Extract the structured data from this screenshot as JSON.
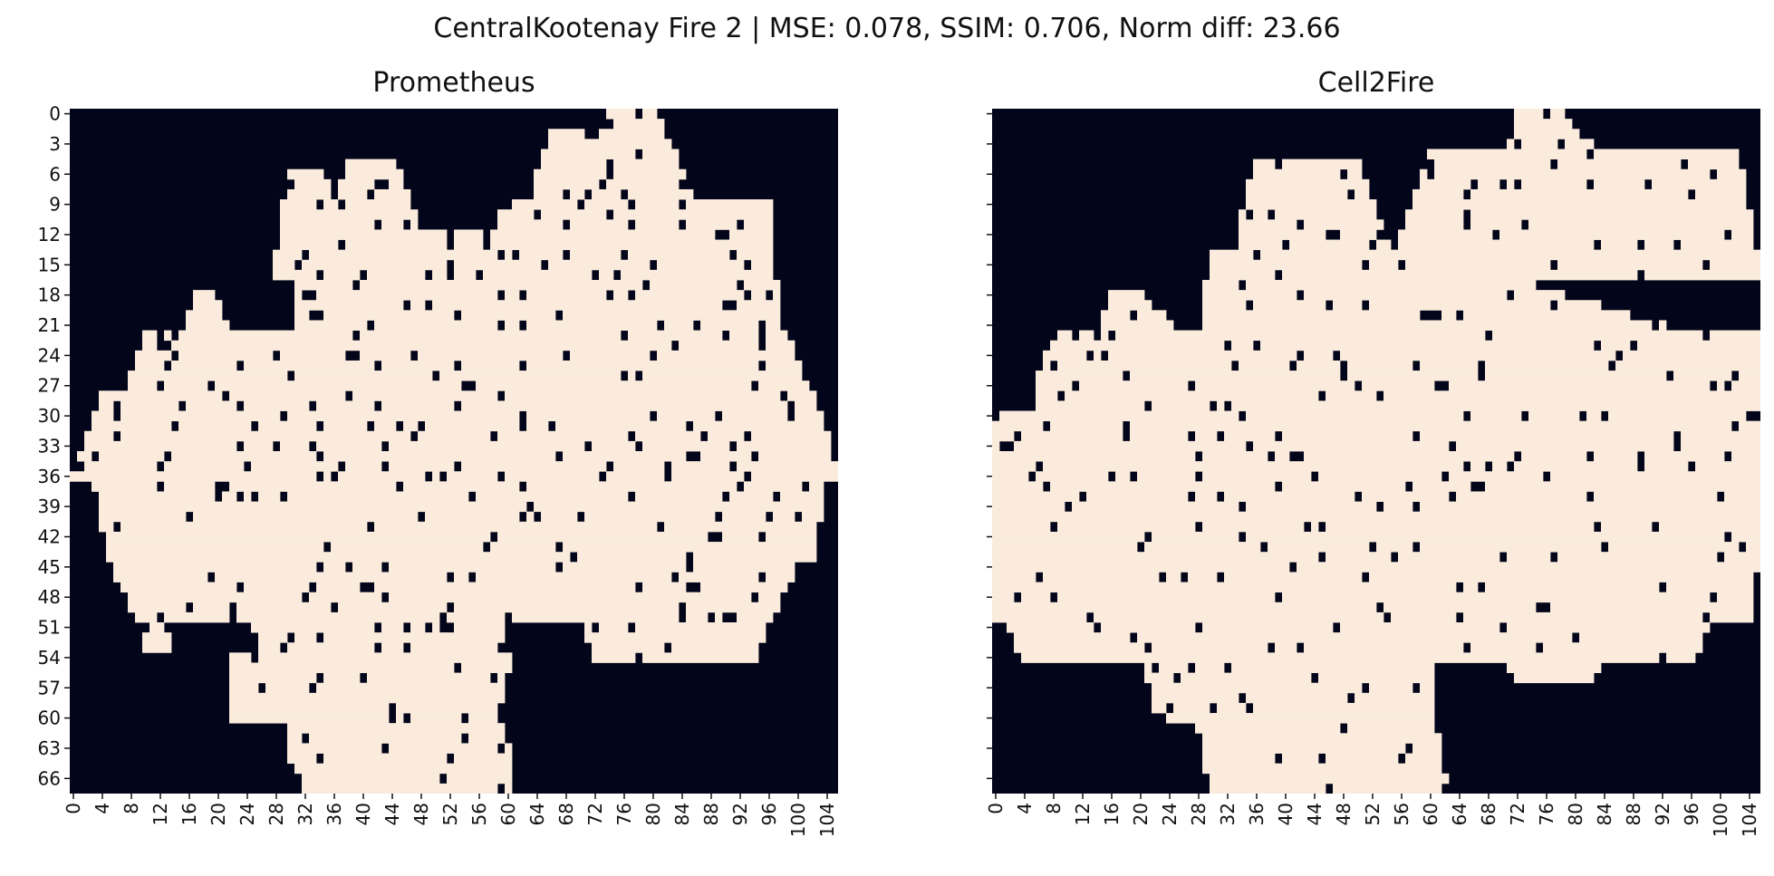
{
  "title": "CentralKootenay Fire 2 | MSE: 0.078, SSIM: 0.706, Norm diff: 23.66",
  "chart_data": [
    {
      "type": "heatmap",
      "title": "Prometheus",
      "grid_rows": 68,
      "grid_cols": 106,
      "values": "binary burn mask (0 = unburned, 1 = burned); irregular burned region spanning rows 0–67, cols 0–105",
      "colors": {
        "unburned": "#03051a",
        "burned": "#faebdd"
      },
      "yticks": [
        "0",
        "3",
        "6",
        "9",
        "12",
        "15",
        "18",
        "21",
        "24",
        "27",
        "30",
        "33",
        "36",
        "39",
        "42",
        "45",
        "48",
        "51",
        "54",
        "57",
        "60",
        "63",
        "66"
      ],
      "xticks": [
        "0",
        "4",
        "8",
        "12",
        "16",
        "20",
        "24",
        "28",
        "32",
        "36",
        "40",
        "44",
        "48",
        "52",
        "56",
        "60",
        "64",
        "68",
        "72",
        "76",
        "80",
        "84",
        "88",
        "92",
        "96",
        "100",
        "104"
      ]
    },
    {
      "type": "heatmap",
      "title": "Cell2Fire",
      "grid_rows": 68,
      "grid_cols": 106,
      "values": "binary burn mask (0 = unburned, 1 = burned); larger burned region extending to right and left edges",
      "colors": {
        "unburned": "#03051a",
        "burned": "#faebdd"
      },
      "yticks": [],
      "xticks": [
        "0",
        "4",
        "8",
        "12",
        "16",
        "20",
        "24",
        "28",
        "32",
        "36",
        "40",
        "44",
        "48",
        "52",
        "56",
        "60",
        "64",
        "68",
        "72",
        "76",
        "80",
        "84",
        "88",
        "92",
        "96",
        "100",
        "104"
      ]
    }
  ]
}
